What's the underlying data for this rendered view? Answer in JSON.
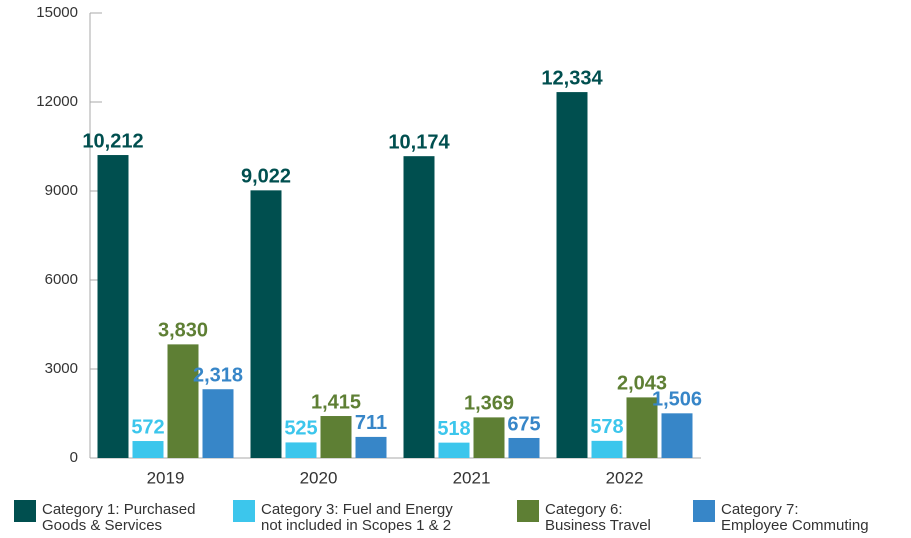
{
  "chart_data": {
    "type": "bar",
    "categories": [
      "2019",
      "2020",
      "2021",
      "2022"
    ],
    "series": [
      {
        "name": "Category 1: Purchased\nGoods & Services",
        "color": "#004f4f",
        "values": [
          10212,
          9022,
          10174,
          12334
        ],
        "value_labels": [
          "10,212",
          "9,022",
          "10,174",
          "12,334"
        ]
      },
      {
        "name": "Category 3: Fuel and Energy\nnot included in Scopes 1 & 2",
        "color": "#3cc6ec",
        "values": [
          572,
          525,
          518,
          578
        ],
        "value_labels": [
          "572",
          "525",
          "518",
          "578"
        ]
      },
      {
        "name": "Category 6:\nBusiness Travel",
        "color": "#5e7f34",
        "values": [
          3830,
          1415,
          1369,
          2043
        ],
        "value_labels": [
          "3,830",
          "1,415",
          "1,369",
          "2,043"
        ]
      },
      {
        "name": "Category 7:\nEmployee Commuting",
        "color": "#3786c8",
        "values": [
          2318,
          711,
          675,
          1506
        ],
        "value_labels": [
          "2,318",
          "711",
          "675",
          "1,506"
        ]
      }
    ],
    "ylim": [
      0,
      15000
    ],
    "yticks": [
      0,
      3000,
      6000,
      9000,
      12000,
      15000
    ],
    "grid": false
  }
}
